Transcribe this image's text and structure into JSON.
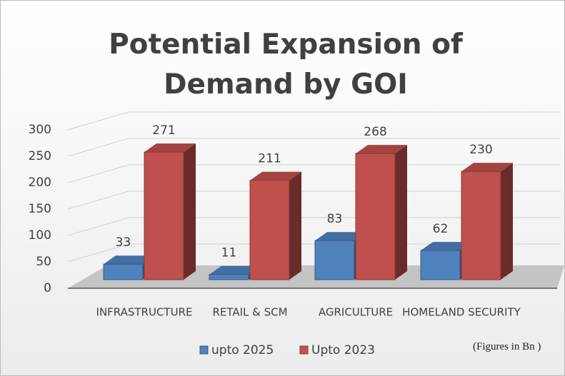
{
  "chart_data": {
    "type": "bar3d",
    "title": "Potential Expansion of Demand by GOI",
    "categories": [
      "INFRASTRUCTURE",
      "RETAIL & SCM",
      "AGRICULTURE",
      "HOMELAND SECURITY"
    ],
    "series": [
      {
        "name": "upto 2025",
        "color": "#4f81bd",
        "values": [
          33,
          11,
          83,
          62
        ]
      },
      {
        "name": "Upto 2023",
        "color": "#c0504d",
        "values": [
          271,
          211,
          268,
          230
        ]
      }
    ],
    "ylim": [
      0,
      300
    ],
    "yticks": [
      0,
      50,
      100,
      150,
      200,
      250,
      300
    ],
    "grid": true,
    "legend": "bottom",
    "annotation": "(Figures in Bn )"
  }
}
